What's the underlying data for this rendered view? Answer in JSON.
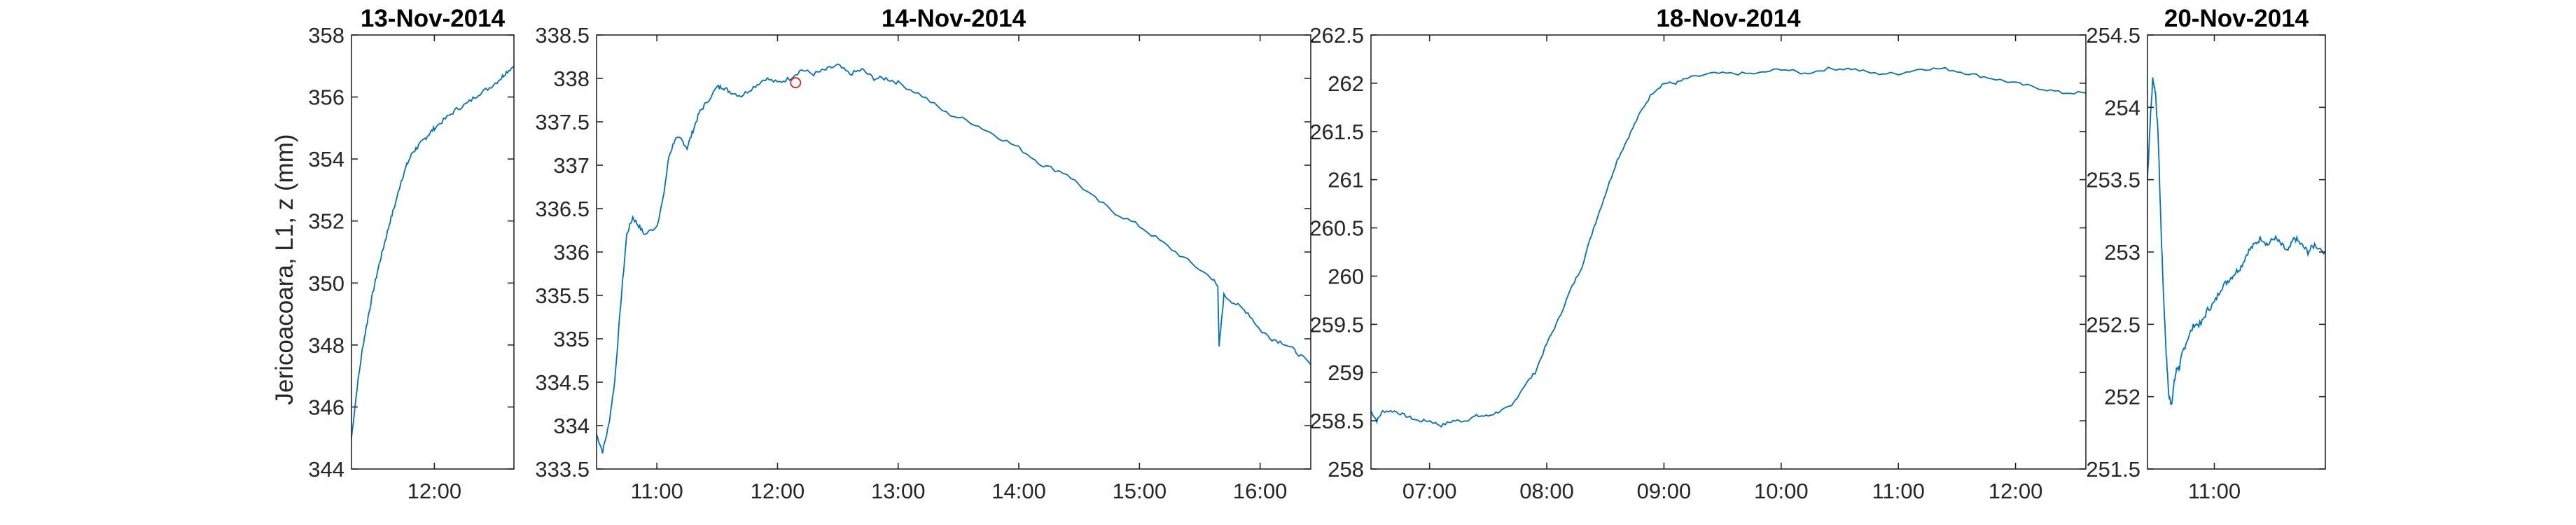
{
  "figure": {
    "ylabel": "Jericoacoara, L1, z (mm)",
    "line_color": "#0072BD",
    "marker_color": "#E0201B"
  },
  "chart_data": [
    {
      "type": "line",
      "title": "13-Nov-2014",
      "xlim": [
        11.25,
        12.72
      ],
      "ylim": [
        344,
        358
      ],
      "x_ticks": [
        12.0
      ],
      "x_tick_labels": [
        "12:00"
      ],
      "y_ticks": [
        344,
        346,
        348,
        350,
        352,
        354,
        356,
        358
      ],
      "y_tick_labels": [
        "344",
        "346",
        "348",
        "350",
        "352",
        "354",
        "356",
        "358"
      ],
      "series": [
        {
          "x": [
            11.25,
            11.3,
            11.35,
            11.4,
            11.45,
            11.5,
            11.55,
            11.6,
            11.65,
            11.7,
            11.75,
            11.8,
            11.85,
            11.9,
            11.95,
            12.0,
            12.1,
            12.2,
            12.3,
            12.4,
            12.5,
            12.6,
            12.65,
            12.72
          ],
          "y": [
            345.0,
            346.6,
            347.9,
            348.9,
            349.8,
            350.6,
            351.3,
            352.0,
            352.6,
            353.3,
            353.8,
            354.2,
            354.4,
            354.6,
            354.8,
            355.0,
            355.3,
            355.6,
            355.8,
            356.1,
            356.3,
            356.6,
            356.8,
            357.0
          ]
        }
      ]
    },
    {
      "type": "line",
      "title": "14-Nov-2014",
      "xlim": [
        10.5,
        16.42
      ],
      "ylim": [
        333.5,
        338.5
      ],
      "x_ticks": [
        11,
        12,
        13,
        14,
        15,
        16
      ],
      "x_tick_labels": [
        "11:00",
        "12:00",
        "13:00",
        "14:00",
        "15:00",
        "16:00"
      ],
      "y_ticks": [
        333.5,
        334,
        334.5,
        335,
        335.5,
        336,
        336.5,
        337,
        337.5,
        338,
        338.5
      ],
      "y_tick_labels": [
        "333.5",
        "334",
        "334.5",
        "335",
        "335.5",
        "336",
        "336.5",
        "337",
        "337.5",
        "338",
        "338.5"
      ],
      "series": [
        {
          "x": [
            10.5,
            10.55,
            10.6,
            10.65,
            10.7,
            10.75,
            10.8,
            10.85,
            10.9,
            11.0,
            11.05,
            11.1,
            11.15,
            11.2,
            11.25,
            11.3,
            11.35,
            11.4,
            11.5,
            11.55,
            11.6,
            11.7,
            11.8,
            11.9,
            12.0,
            12.1,
            12.2,
            12.3,
            12.4,
            12.5,
            12.6,
            12.7,
            12.8,
            12.9,
            13.0,
            13.2,
            13.4,
            13.6,
            13.8,
            14.0,
            14.2,
            14.4,
            14.6,
            14.8,
            15.0,
            15.2,
            15.4,
            15.6,
            15.65,
            15.66,
            15.7,
            15.8,
            15.9,
            16.0,
            16.1,
            16.2,
            16.3,
            16.42
          ],
          "y": [
            333.9,
            333.7,
            334.0,
            334.5,
            335.4,
            336.2,
            336.4,
            336.3,
            336.2,
            336.3,
            336.6,
            337.1,
            337.3,
            337.3,
            337.2,
            337.4,
            337.6,
            337.7,
            337.9,
            337.9,
            337.85,
            337.8,
            337.9,
            338.0,
            337.95,
            338.0,
            338.1,
            338.05,
            338.1,
            338.15,
            338.05,
            338.1,
            338.0,
            338.0,
            337.95,
            337.8,
            337.6,
            337.5,
            337.35,
            337.2,
            337.0,
            336.9,
            336.65,
            336.45,
            336.3,
            336.1,
            335.9,
            335.7,
            335.6,
            334.9,
            335.5,
            335.4,
            335.3,
            335.1,
            335.0,
            334.95,
            334.85,
            334.7
          ]
        }
      ],
      "marker": {
        "x": 12.15,
        "y": 337.95
      }
    },
    {
      "type": "line",
      "title": "18-Nov-2014",
      "xlim": [
        6.5,
        12.6
      ],
      "ylim": [
        258,
        262.5
      ],
      "x_ticks": [
        7,
        8,
        9,
        10,
        11,
        12
      ],
      "x_tick_labels": [
        "07:00",
        "08:00",
        "09:00",
        "10:00",
        "11:00",
        "12:00"
      ],
      "y_ticks": [
        258,
        258.5,
        259,
        259.5,
        260,
        260.5,
        261,
        261.5,
        262,
        262.5
      ],
      "y_tick_labels": [
        "258",
        "258.5",
        "259",
        "259.5",
        "260",
        "260.5",
        "261",
        "261.5",
        "262",
        "262.5"
      ],
      "series": [
        {
          "x": [
            6.5,
            6.55,
            6.6,
            6.7,
            6.8,
            6.9,
            7.0,
            7.1,
            7.2,
            7.3,
            7.4,
            7.5,
            7.6,
            7.7,
            7.8,
            7.9,
            8.0,
            8.1,
            8.2,
            8.3,
            8.4,
            8.5,
            8.6,
            8.7,
            8.8,
            8.9,
            9.0,
            9.1,
            9.2,
            9.4,
            9.6,
            9.8,
            10.0,
            10.2,
            10.4,
            10.6,
            10.8,
            11.0,
            11.2,
            11.4,
            11.6,
            11.8,
            12.0,
            12.2,
            12.4,
            12.6
          ],
          "y": [
            258.6,
            258.5,
            258.6,
            258.6,
            258.55,
            258.5,
            258.5,
            258.45,
            258.5,
            258.5,
            258.55,
            258.55,
            258.6,
            258.65,
            258.85,
            259.0,
            259.3,
            259.55,
            259.85,
            260.1,
            260.5,
            260.85,
            261.2,
            261.45,
            261.7,
            261.9,
            262.0,
            262.0,
            262.05,
            262.1,
            262.1,
            262.1,
            262.15,
            262.1,
            262.15,
            262.15,
            262.1,
            262.1,
            262.15,
            262.15,
            262.1,
            262.05,
            262.0,
            261.95,
            261.9,
            261.9
          ]
        }
      ]
    },
    {
      "type": "line",
      "title": "20-Nov-2014",
      "xlim": [
        10.5,
        11.83
      ],
      "ylim": [
        251.5,
        254.5
      ],
      "x_ticks": [
        11
      ],
      "x_tick_labels": [
        "11:00"
      ],
      "y_ticks": [
        251.5,
        252,
        252.5,
        253,
        253.5,
        254,
        254.5
      ],
      "y_tick_labels": [
        "251.5",
        "252",
        "252.5",
        "253",
        "253.5",
        "254",
        "254.5"
      ],
      "series": [
        {
          "x": [
            10.5,
            10.52,
            10.54,
            10.56,
            10.58,
            10.6,
            10.62,
            10.64,
            10.66,
            10.68,
            10.7,
            10.72,
            10.74,
            10.76,
            10.8,
            10.85,
            10.9,
            10.95,
            11.0,
            11.05,
            11.1,
            11.15,
            11.2,
            11.25,
            11.3,
            11.35,
            11.4,
            11.45,
            11.5,
            11.55,
            11.6,
            11.65,
            11.7,
            11.75,
            11.83
          ],
          "y": [
            253.5,
            253.9,
            254.2,
            254.1,
            253.8,
            253.2,
            252.7,
            252.3,
            252.0,
            251.95,
            252.1,
            252.2,
            252.2,
            252.3,
            252.4,
            252.5,
            252.5,
            252.6,
            252.65,
            252.75,
            252.8,
            252.85,
            252.9,
            253.0,
            253.05,
            253.1,
            253.05,
            253.1,
            253.05,
            253.0,
            253.1,
            253.05,
            253.0,
            253.05,
            253.0
          ]
        }
      ]
    }
  ]
}
